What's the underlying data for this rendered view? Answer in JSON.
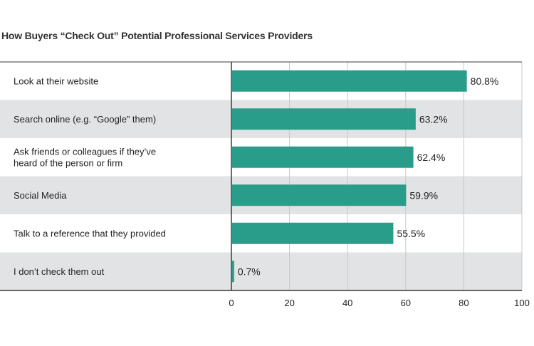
{
  "chart_data": {
    "type": "bar",
    "orientation": "horizontal",
    "title": "How Buyers “Check Out” Potential Professional Services Providers",
    "categories": [
      [
        "Look at their website"
      ],
      [
        "Search online (e.g. “Google” them)"
      ],
      [
        "Ask friends or colleagues if they’ve",
        "heard of the person or firm"
      ],
      [
        "Social Media"
      ],
      [
        "Talk to a reference that they provided"
      ],
      [
        "I don’t check them out"
      ]
    ],
    "values": [
      80.8,
      63.2,
      62.4,
      59.9,
      55.5,
      0.7
    ],
    "value_labels": [
      "80.8%",
      "63.2%",
      "62.4%",
      "59.9%",
      "55.5%",
      "0.7%"
    ],
    "xlim": [
      0,
      100
    ],
    "xticks": [
      0,
      20,
      40,
      60,
      80,
      100
    ],
    "xtick_labels": [
      "0",
      "20",
      "40",
      "60",
      "80",
      "100"
    ],
    "xlabel": "",
    "ylabel": "",
    "grid": true,
    "bar_color": "#2a9d8a",
    "band_colors": [
      "#ffffff",
      "#e2e3e4"
    ],
    "gridline_color": "#c8c8c8",
    "axis_color": "#3a3a3a"
  }
}
